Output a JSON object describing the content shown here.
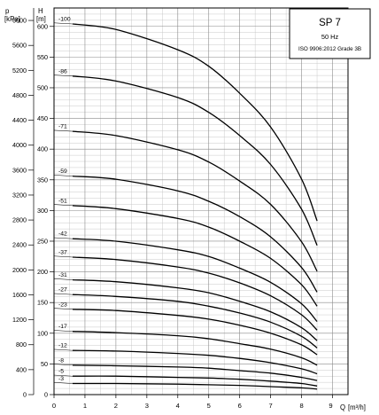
{
  "chart_data": {
    "type": "line",
    "title": "SP 7",
    "subtitle": "50 Hz",
    "standard": "ISO 9906:2012 Grade 3B",
    "left_axis": {
      "unit_symbol": "p",
      "unit": "[kPa]",
      "range": [
        0,
        6200
      ],
      "ticks": [
        0,
        400,
        800,
        1200,
        1600,
        2000,
        2400,
        2800,
        3200,
        3600,
        4000,
        4400,
        4800,
        5200,
        5600,
        6000
      ]
    },
    "right_axis": {
      "unit_symbol": "H",
      "unit": "[m]",
      "range": [
        0,
        630
      ],
      "ticks": [
        0,
        50,
        100,
        150,
        200,
        250,
        300,
        350,
        400,
        450,
        500,
        550,
        600
      ]
    },
    "x_axis": {
      "unit_symbol": "Q",
      "unit": "[m³/h]",
      "range": [
        0,
        9.5
      ],
      "ticks": [
        0,
        1,
        2,
        3,
        4,
        5,
        6,
        7,
        8,
        9
      ]
    },
    "grid": true,
    "series": [
      {
        "name": "-100",
        "x": [
          0.6,
          2,
          4,
          5,
          6,
          7,
          8,
          8.5
        ],
        "y": [
          604,
          595,
          562,
          535,
          491,
          436,
          351,
          283
        ]
      },
      {
        "name": "-86",
        "x": [
          0.6,
          2,
          4,
          5,
          6,
          7,
          8,
          8.5
        ],
        "y": [
          519,
          511,
          484,
          460,
          422,
          375,
          302,
          243
        ]
      },
      {
        "name": "-71",
        "x": [
          0.6,
          2,
          4,
          5,
          6,
          7,
          8,
          8.5
        ],
        "y": [
          429,
          422,
          399,
          379,
          348,
          310,
          249,
          201
        ]
      },
      {
        "name": "-59",
        "x": [
          0.6,
          2,
          4,
          5,
          6,
          7,
          8,
          8.5
        ],
        "y": [
          356,
          351,
          332,
          315,
          290,
          257,
          207,
          167
        ]
      },
      {
        "name": "-51",
        "x": [
          0.6,
          2,
          4,
          5,
          6,
          7,
          8,
          8.5
        ],
        "y": [
          308,
          303,
          287,
          273,
          250,
          222,
          179,
          144
        ]
      },
      {
        "name": "-42",
        "x": [
          0.6,
          2,
          4,
          5,
          6,
          7,
          8,
          8.5
        ],
        "y": [
          254,
          250,
          236,
          225,
          206,
          183,
          148,
          119
        ]
      },
      {
        "name": "-37",
        "x": [
          0.6,
          2,
          4,
          5,
          6,
          7,
          8,
          8.5
        ],
        "y": [
          224,
          220,
          208,
          198,
          182,
          161,
          130,
          105
        ]
      },
      {
        "name": "-31",
        "x": [
          0.6,
          2,
          4,
          5,
          6,
          7,
          8,
          8.5
        ],
        "y": [
          187,
          184,
          174,
          166,
          152,
          135,
          109,
          88
        ]
      },
      {
        "name": "-27",
        "x": [
          0.6,
          2,
          4,
          5,
          6,
          7,
          8,
          8.5
        ],
        "y": [
          163,
          160,
          152,
          144,
          133,
          118,
          95,
          76
        ]
      },
      {
        "name": "-23",
        "x": [
          0.6,
          2,
          4,
          5,
          6,
          7,
          8,
          8.5
        ],
        "y": [
          139,
          137,
          129,
          123,
          113,
          100,
          81,
          65
        ]
      },
      {
        "name": "-17",
        "x": [
          0.6,
          2,
          4,
          5,
          6,
          7,
          8,
          8.5
        ],
        "y": [
          103,
          101,
          96,
          91,
          83,
          74,
          60,
          48
        ]
      },
      {
        "name": "-12",
        "x": [
          0.6,
          2,
          4,
          5,
          6,
          7,
          8,
          8.5
        ],
        "y": [
          72,
          71,
          67,
          64,
          59,
          52,
          42,
          34
        ]
      },
      {
        "name": "-8",
        "x": [
          0.6,
          2,
          4,
          5,
          6,
          7,
          8,
          8.5
        ],
        "y": [
          48,
          47,
          45,
          43,
          39,
          35,
          28,
          23
        ]
      },
      {
        "name": "-5",
        "x": [
          0.6,
          2,
          4,
          5,
          6,
          7,
          8,
          8.5
        ],
        "y": [
          30,
          30,
          28,
          27,
          25,
          22,
          18,
          14
        ]
      },
      {
        "name": "-3",
        "x": [
          0.6,
          2,
          4,
          5,
          6,
          7,
          8,
          8.5
        ],
        "y": [
          18,
          18,
          17,
          16,
          15,
          13,
          11,
          9
        ]
      }
    ]
  }
}
